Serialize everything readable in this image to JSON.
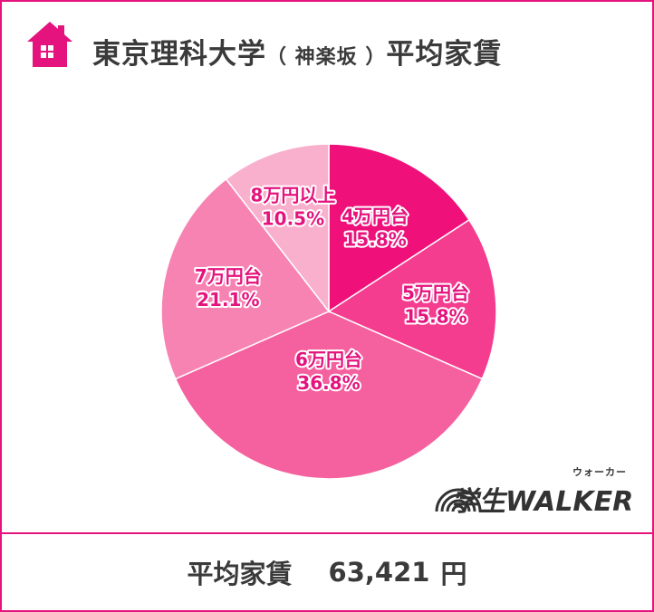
{
  "header": {
    "title_main": "東京理科大学",
    "title_paren": "（ 神楽坂 ）",
    "title_tail": "平均家賃",
    "icon": "house-icon"
  },
  "chart_data": {
    "type": "pie",
    "categories": [
      "4万円台",
      "5万円台",
      "6万円台",
      "7万円台",
      "8万円以上"
    ],
    "values": [
      15.8,
      15.8,
      36.8,
      21.1,
      10.5
    ],
    "value_labels": [
      "15.8%",
      "15.8%",
      "36.8%",
      "21.1%",
      "10.5%"
    ],
    "colors": [
      "#f0107a",
      "#f53d8f",
      "#f5619f",
      "#f783b3",
      "#f9b0cd"
    ],
    "start_angle": "12 o'clock",
    "direction": "clockwise",
    "legend": "none",
    "label_color": "#e4137d",
    "label_outline": "#ffffff"
  },
  "logo": {
    "text": "学生WALKER",
    "ruby": "ウォーカー",
    "icon": "rainbow-arc-icon"
  },
  "footer": {
    "label": "平均家賃",
    "value": "63,421",
    "unit": "円"
  },
  "colors": {
    "accent": "#e4137d",
    "text": "#3a3a3a"
  }
}
